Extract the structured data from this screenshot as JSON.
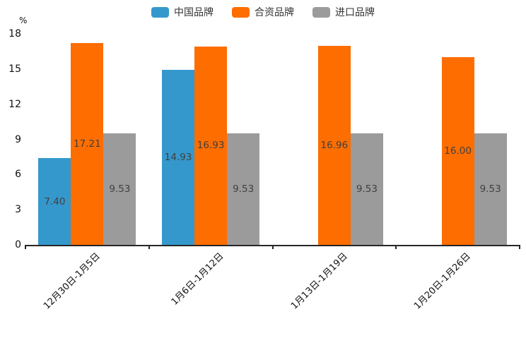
{
  "chart_data": {
    "type": "bar",
    "title": "",
    "ylabel": "%",
    "xlabel": "",
    "ylim": [
      0,
      18
    ],
    "yticks": [
      0,
      3,
      6,
      9,
      12,
      15,
      18
    ],
    "grid": false,
    "legend_position": "top",
    "categories": [
      "12月30日-1月5日",
      "1月6日-1月12日",
      "1月13日-1月19日",
      "1月20日-1月26日"
    ],
    "series": [
      {
        "name": "中国品牌",
        "color": "#3598CC",
        "values": [
          7.4,
          14.93,
          null,
          null
        ]
      },
      {
        "name": "合资品牌",
        "color": "#FE6D00",
        "values": [
          17.21,
          16.93,
          16.96,
          16.0
        ]
      },
      {
        "name": "进口品牌",
        "color": "#9B9B9B",
        "values": [
          9.53,
          9.53,
          9.53,
          9.53
        ]
      }
    ],
    "colors": {
      "axis": "#262626",
      "tick_text": "#111111",
      "value_label_text": "#404040",
      "legend_text": "#333333",
      "background": "#ffffff"
    }
  }
}
